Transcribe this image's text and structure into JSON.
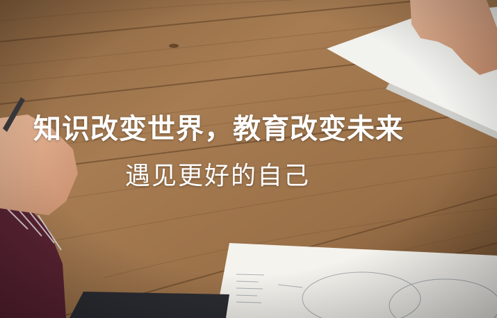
{
  "banner": {
    "headline": "知识改变世界，教育改变未来",
    "subline": "遇见更好的自己"
  },
  "colors": {
    "text": "#ffffff",
    "wood_light": "#a77c52",
    "wood_dark": "#5e3f24"
  }
}
